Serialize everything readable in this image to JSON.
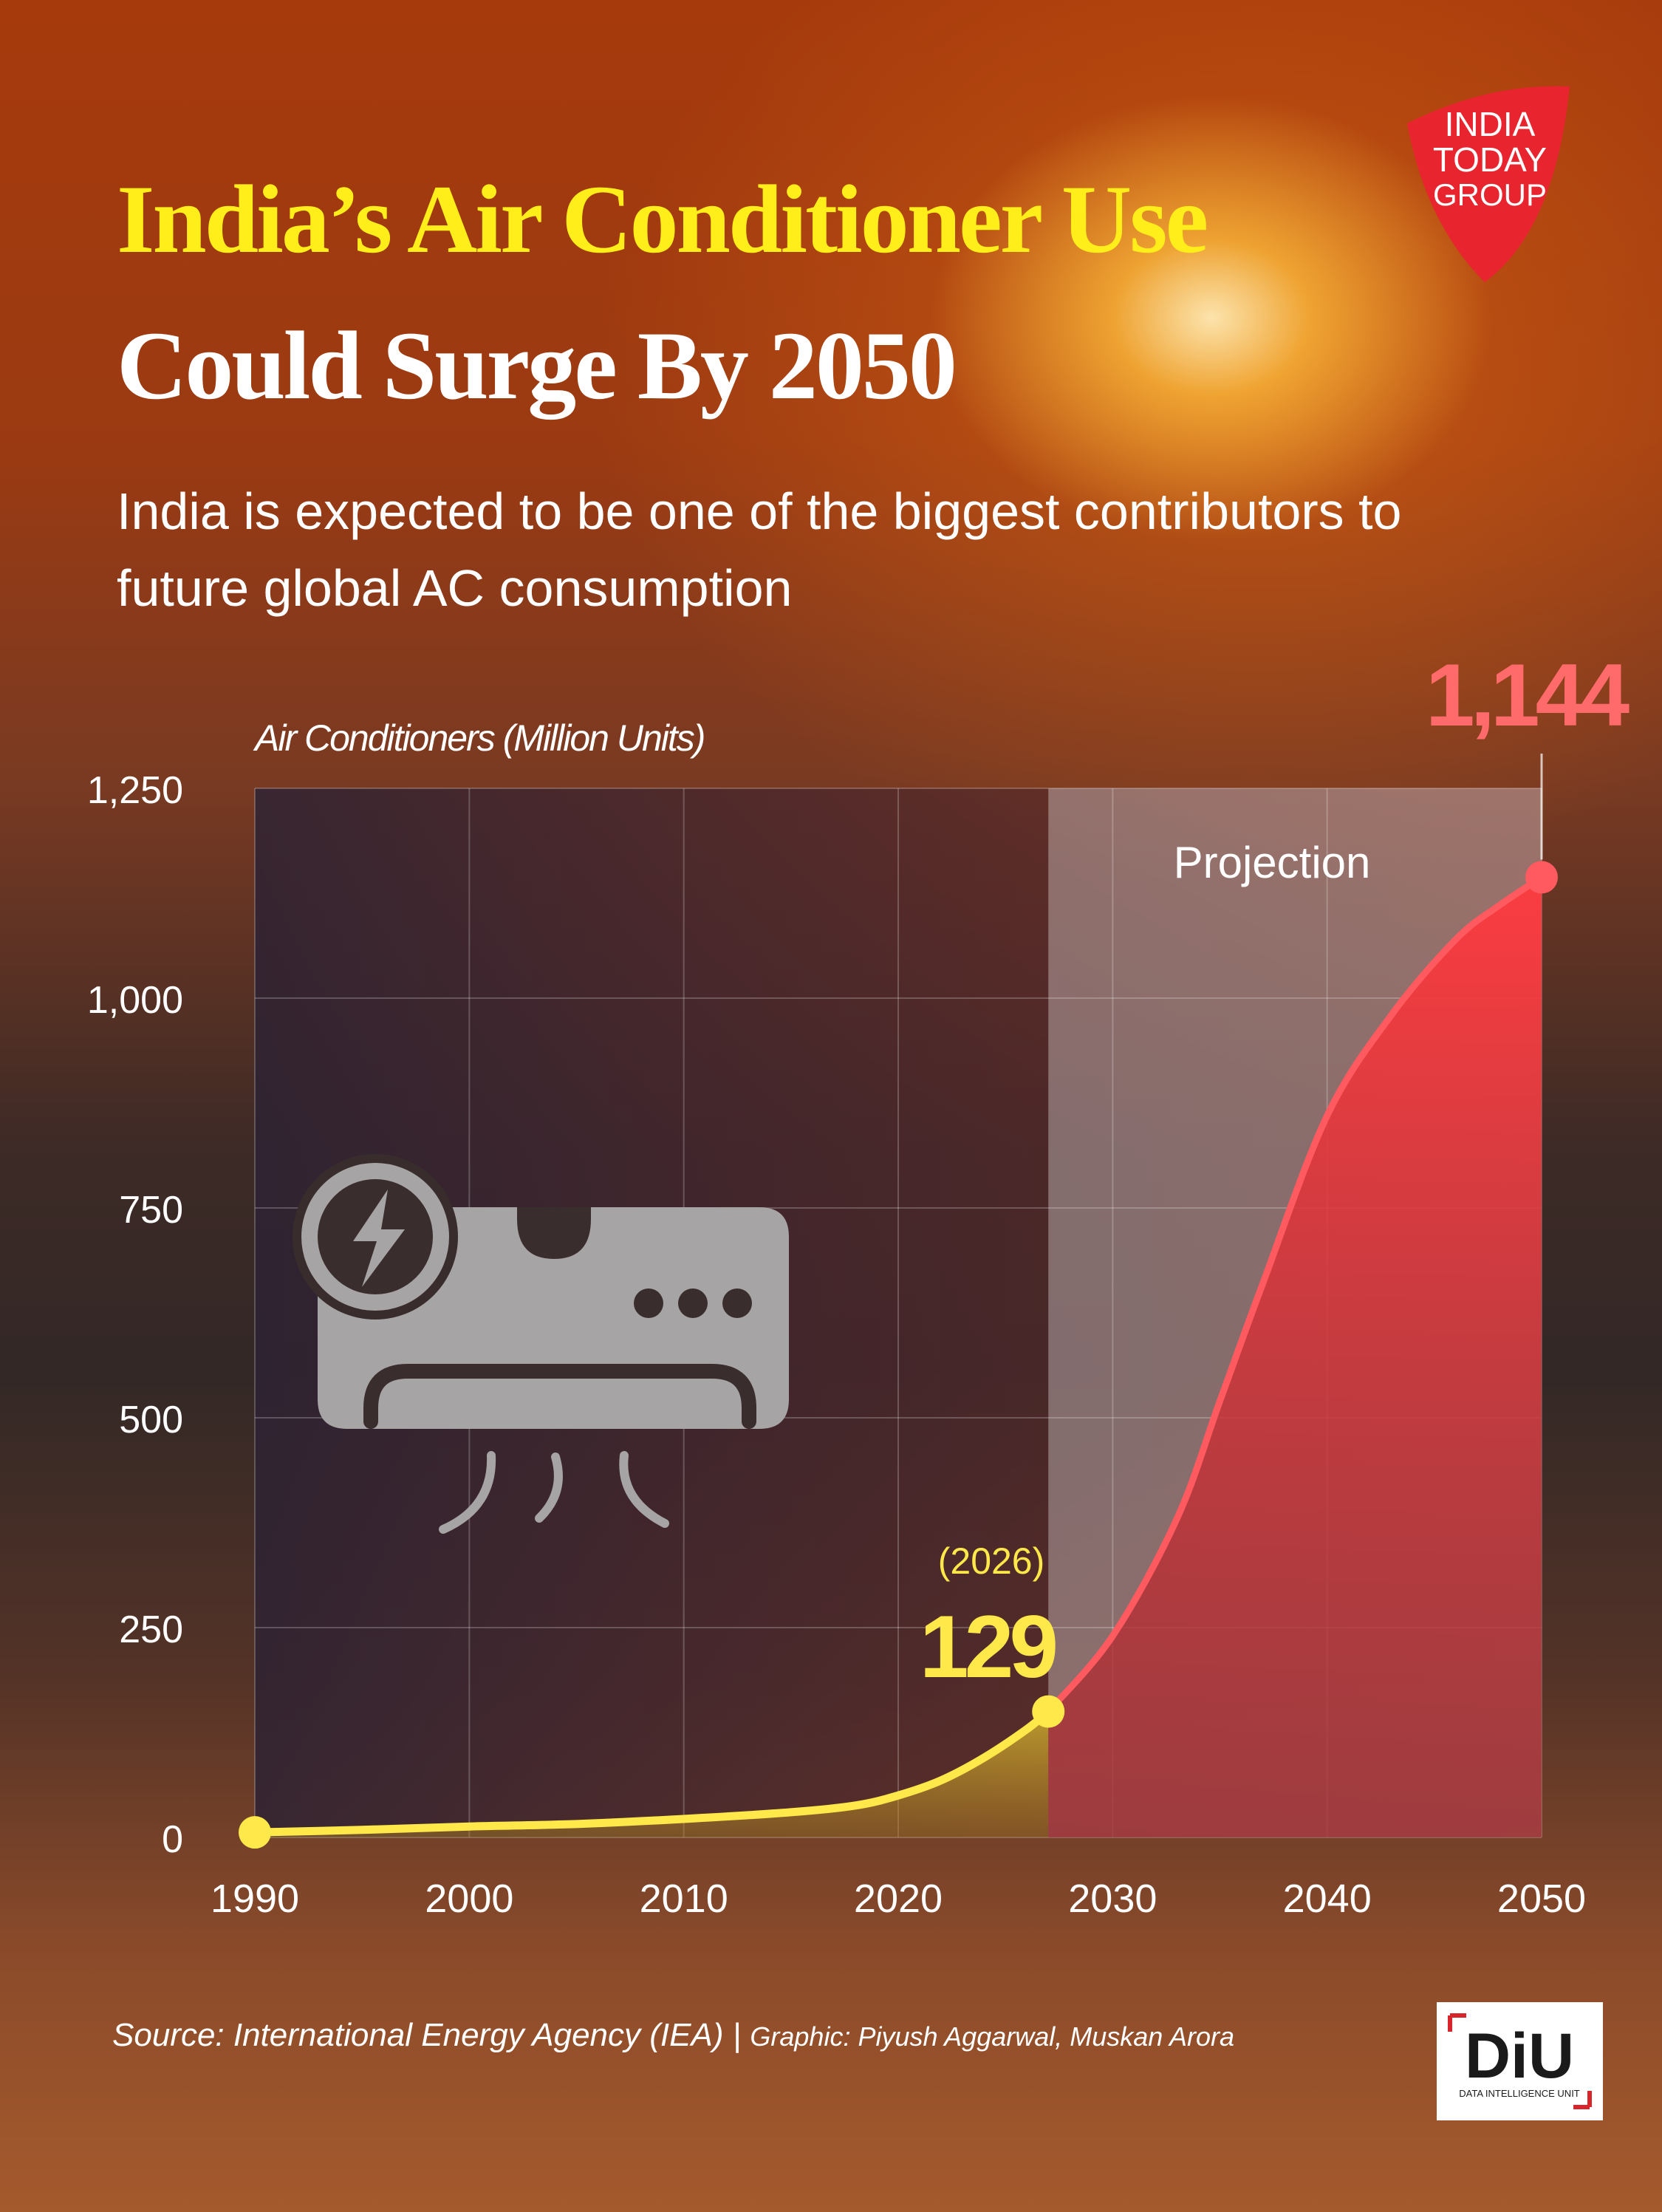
{
  "title": {
    "line1": "India’s Air Conditioner Use",
    "line2": "Could Surge By 2050"
  },
  "subtitle": "India is expected to be one of the biggest contributors to future global AC consumption",
  "brand": {
    "india_today_lines": [
      "INDIA",
      "TODAY",
      "GROUP"
    ],
    "diu_mark": "DiU",
    "diu_caption": "DATA INTELLIGENCE UNIT"
  },
  "source": {
    "source_text": "Source: International Energy Agency (IEA)",
    "separator": "|",
    "graphic_text": "Graphic: Piyush Aggarwal, Muskan Arora"
  },
  "colors": {
    "historical_line": "#ffe84a",
    "projection_line": "#ff5a5f",
    "callout_2026": "#ffe84a",
    "callout_2050": "#ff6b6b",
    "projection_band": "rgba(255,255,255,0.32)",
    "icon": "#a6a4a4"
  },
  "icons": [
    "air-conditioner-icon",
    "lightning-bolt-icon"
  ],
  "chart_data": {
    "type": "line",
    "ylabel": "Air Conditioners (Million Units)",
    "xlabel": "",
    "xlim": [
      1990,
      2050
    ],
    "ylim": [
      0,
      1250
    ],
    "x_ticks": [
      1990,
      2000,
      2010,
      2020,
      2030,
      2040,
      2050
    ],
    "y_ticks": [
      0,
      250,
      500,
      750,
      1000,
      1250
    ],
    "y_tick_labels": [
      "0",
      "250",
      "500",
      "750",
      "1,000",
      "1,250"
    ],
    "grid": true,
    "projection_band": {
      "label": "Projection",
      "from": 2027,
      "to": 2050
    },
    "series": [
      {
        "role": "historical",
        "x": [
          1990,
          1995,
          2000,
          2005,
          2010,
          2015,
          2018,
          2020,
          2022,
          2024,
          2026,
          2027
        ],
        "y": [
          6,
          9,
          13,
          16,
          22,
          30,
          38,
          50,
          68,
          95,
          129,
          150
        ]
      },
      {
        "role": "projection",
        "x": [
          2027,
          2030,
          2033,
          2035,
          2037,
          2040,
          2043,
          2046,
          2048,
          2050
        ],
        "y": [
          150,
          240,
          380,
          520,
          660,
          860,
          980,
          1070,
          1110,
          1144
        ]
      }
    ],
    "annotations": [
      {
        "x": 2027,
        "y": 150,
        "year_label": "(2026)",
        "value_label": "129"
      },
      {
        "x": 2050,
        "y": 1144,
        "value_label": "1,144"
      }
    ]
  }
}
